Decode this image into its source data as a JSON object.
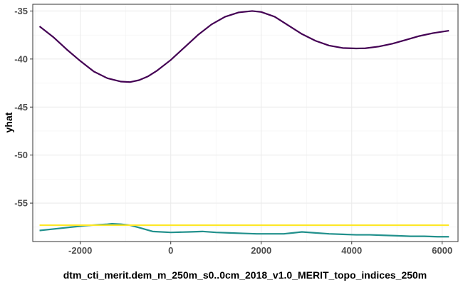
{
  "chart_data": {
    "type": "line",
    "xlabel": "dtm_cti_merit.dem_m_250m_s0..0cm_2018_v1.0_MERIT_topo_indices_250m",
    "ylabel": "yhat",
    "xlim": [
      -3050,
      6350
    ],
    "ylim": [
      -59.0,
      -34.3
    ],
    "x_ticks": [
      -2000,
      0,
      2000,
      4000,
      6000
    ],
    "x_tick_labels": [
      "-2000",
      "0",
      "2000",
      "4000",
      "6000"
    ],
    "y_ticks": [
      -35,
      -40,
      -45,
      -50,
      -55
    ],
    "y_tick_labels": [
      "-35",
      "-40",
      "-45",
      "-50",
      "-55"
    ],
    "grid": true,
    "legend": "none",
    "series": [
      {
        "color": "#440154",
        "x": [
          -2900,
          -2600,
          -2300,
          -2000,
          -1700,
          -1400,
          -1100,
          -900,
          -700,
          -500,
          -300,
          0,
          300,
          600,
          900,
          1200,
          1500,
          1800,
          2000,
          2300,
          2600,
          2900,
          3200,
          3500,
          3800,
          4100,
          4300,
          4600,
          4900,
          5200,
          5500,
          5800,
          6150
        ],
        "y": [
          -36.6,
          -37.7,
          -39.0,
          -40.2,
          -41.3,
          -42.0,
          -42.35,
          -42.4,
          -42.2,
          -41.8,
          -41.2,
          -40.1,
          -38.8,
          -37.5,
          -36.4,
          -35.6,
          -35.15,
          -35.0,
          -35.1,
          -35.6,
          -36.5,
          -37.4,
          -38.1,
          -38.6,
          -38.85,
          -38.9,
          -38.88,
          -38.7,
          -38.4,
          -38.0,
          -37.6,
          -37.3,
          -37.05
        ]
      },
      {
        "color": "#21908C",
        "x": [
          -2900,
          -2500,
          -2200,
          -1900,
          -1600,
          -1400,
          -1300,
          -1100,
          -900,
          -700,
          -400,
          0,
          400,
          700,
          1000,
          1300,
          1600,
          1900,
          2200,
          2500,
          2700,
          2900,
          3200,
          3500,
          3800,
          4100,
          4400,
          4700,
          5000,
          5300,
          5600,
          5900,
          6150
        ],
        "y": [
          -57.85,
          -57.65,
          -57.5,
          -57.35,
          -57.25,
          -57.2,
          -57.15,
          -57.2,
          -57.3,
          -57.55,
          -57.95,
          -58.05,
          -58.0,
          -57.95,
          -58.05,
          -58.1,
          -58.15,
          -58.2,
          -58.2,
          -58.2,
          -58.1,
          -58.0,
          -58.1,
          -58.2,
          -58.25,
          -58.3,
          -58.3,
          -58.35,
          -58.4,
          -58.45,
          -58.45,
          -58.5,
          -58.5
        ]
      },
      {
        "color": "#FDE725",
        "x": [
          -2900,
          6150
        ],
        "y": [
          -57.3,
          -57.3
        ]
      }
    ]
  }
}
